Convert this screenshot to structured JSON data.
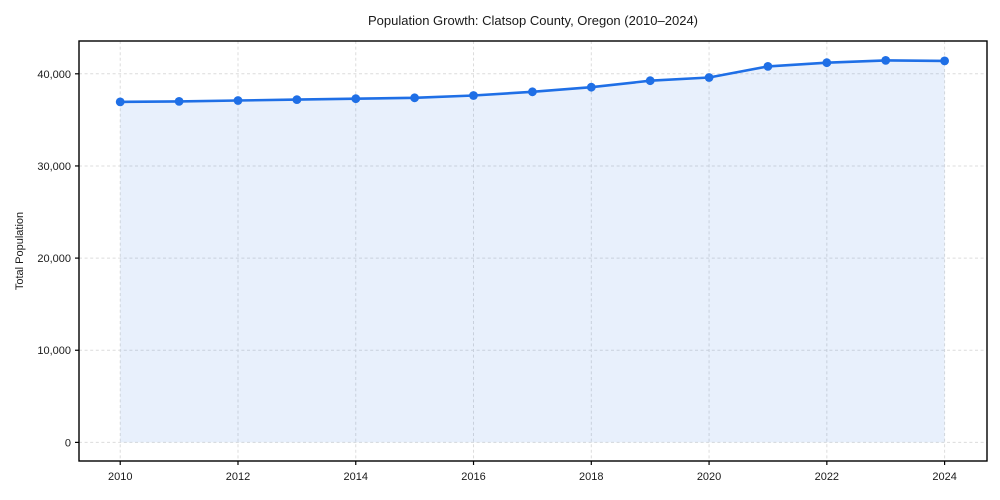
{
  "figure": {
    "background": "#ffffff",
    "frame_color": "#000000"
  },
  "chart_data": {
    "type": "line",
    "title": "Population Growth: Clatsop County, Oregon (2010–2024)",
    "xlabel": "",
    "ylabel": "Total Population",
    "series": [
      {
        "name": "Total Population",
        "x": [
          2010,
          2011,
          2012,
          2013,
          2014,
          2015,
          2016,
          2017,
          2018,
          2019,
          2020,
          2021,
          2022,
          2023,
          2024
        ],
        "values": [
          36950,
          37000,
          37100,
          37200,
          37300,
          37400,
          37650,
          38050,
          38550,
          39250,
          39600,
          40800,
          41200,
          41450,
          41400
        ]
      }
    ],
    "xticks": [
      2010,
      2012,
      2014,
      2016,
      2018,
      2020,
      2022,
      2024
    ],
    "xtick_labels": [
      "2010",
      "2012",
      "2014",
      "2016",
      "2018",
      "2020",
      "2022",
      "2024"
    ],
    "yticks": [
      0,
      10000,
      20000,
      30000,
      40000
    ],
    "ytick_labels": [
      "0",
      "10,000",
      "20,000",
      "30,000",
      "40,000"
    ],
    "xlim": [
      2009.3,
      2024.72
    ],
    "ylim": [
      -2020,
      43560
    ],
    "grid": true,
    "grid_style": "dashed",
    "legend_position": "none",
    "marker": "circle",
    "area_fill": true,
    "colors": {
      "line": "#1f6fe6",
      "marker": "#1f6fe6",
      "fill": "rgba(31,111,230,0.10)",
      "grid": "#dcdcdc",
      "text": "#1a1a1a"
    }
  }
}
